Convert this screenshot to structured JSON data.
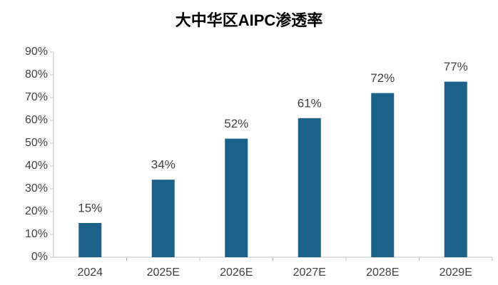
{
  "chart_data": {
    "type": "bar",
    "title": "大中华区AIPC渗透率",
    "categories": [
      "2024",
      "2025E",
      "2026E",
      "2027E",
      "2028E",
      "2029E"
    ],
    "values": [
      15,
      34,
      52,
      61,
      72,
      77
    ],
    "value_labels": [
      "15%",
      "34%",
      "52%",
      "61%",
      "72%",
      "77%"
    ],
    "color": "#1b6189",
    "ylim": [
      0,
      90
    ],
    "yticks": [
      {
        "value": 0,
        "label": "0%"
      },
      {
        "value": 10,
        "label": "10%"
      },
      {
        "value": 20,
        "label": "20%"
      },
      {
        "value": 30,
        "label": "30%"
      },
      {
        "value": 40,
        "label": "40%"
      },
      {
        "value": 50,
        "label": "50%"
      },
      {
        "value": 60,
        "label": "60%"
      },
      {
        "value": 70,
        "label": "70%"
      },
      {
        "value": 80,
        "label": "80%"
      },
      {
        "value": 90,
        "label": "90%"
      }
    ],
    "grid": false
  }
}
